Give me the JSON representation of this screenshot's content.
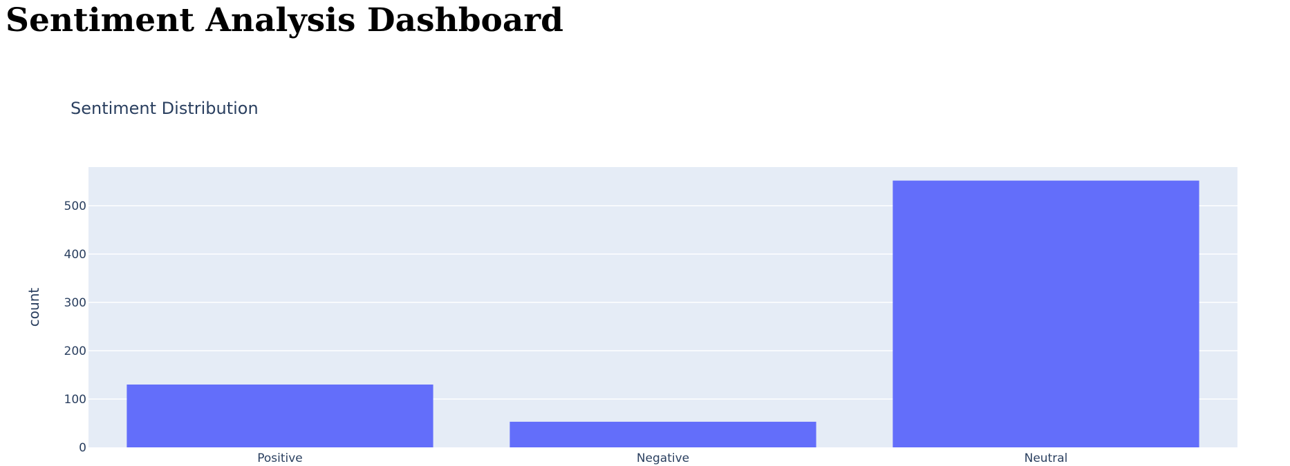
{
  "page": {
    "title": "Sentiment Analysis Dashboard"
  },
  "chart_data": {
    "type": "bar",
    "title": "Sentiment Distribution",
    "xlabel": "",
    "ylabel": "count",
    "categories": [
      "Positive",
      "Negative",
      "Neutral"
    ],
    "values": [
      130,
      53,
      552
    ],
    "ylim": [
      0,
      580
    ],
    "yticks": [
      0,
      100,
      200,
      300,
      400,
      500
    ],
    "grid": true,
    "legend": "none",
    "colors": {
      "bar": "#636efa",
      "plot_background": "#e5ecf6",
      "gridline": "#ffffff",
      "text": "#2a3f5f"
    }
  }
}
